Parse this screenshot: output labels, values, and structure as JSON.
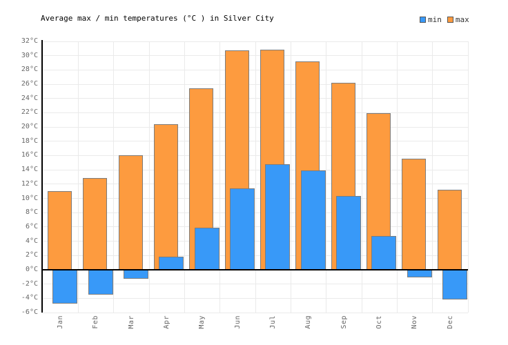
{
  "header": {
    "title": "Average max / min temperatures (°C ) in Silver City"
  },
  "styles": {
    "min_color": "#3899f8",
    "max_color": "#fd9b3f",
    "bar_border": "#7c7c7c",
    "grid_line": "#eaeaea",
    "axis_line": "#000000",
    "tick_text": "#666666",
    "legend_text": "#333333",
    "background": "#ffffff"
  },
  "chart_data": {
    "type": "bar",
    "title": "Average max / min temperatures (°C ) in Silver City",
    "categories": [
      "Jan",
      "Feb",
      "Mar",
      "Apr",
      "May",
      "Jun",
      "Jul",
      "Aug",
      "Sep",
      "Oct",
      "Nov",
      "Dec"
    ],
    "series": [
      {
        "name": "min",
        "color": "#3899f8",
        "values": [
          -4.7,
          -3.5,
          -1.3,
          1.8,
          5.9,
          11.4,
          14.8,
          13.9,
          10.3,
          4.7,
          -1.1,
          -4.2
        ]
      },
      {
        "name": "max",
        "color": "#fd9b3f",
        "values": [
          11.0,
          12.9,
          16.0,
          20.4,
          25.4,
          30.7,
          30.8,
          29.2,
          26.2,
          21.9,
          15.6,
          11.2
        ]
      }
    ],
    "xlabel": "",
    "ylabel": "",
    "ylim": [
      -6,
      32
    ],
    "ytick_step": 2,
    "ytick_suffix": "°C",
    "grid": true,
    "legend_position": "top-right",
    "x_tick_rotation": -90
  }
}
